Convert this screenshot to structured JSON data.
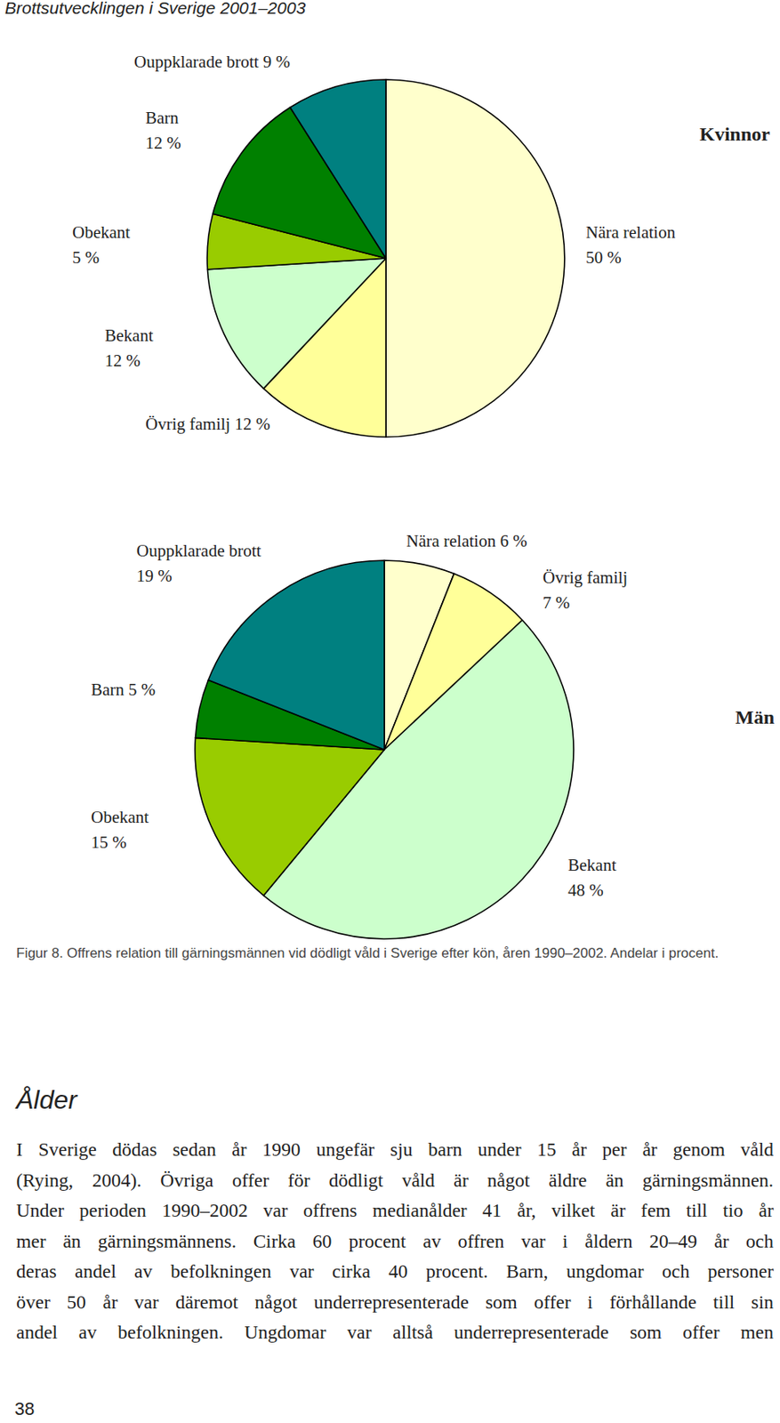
{
  "header": {
    "title": "Brottsutvecklingen i Sverige 2001–2003"
  },
  "chart_data": [
    {
      "type": "pie",
      "title": "Kvinnor",
      "categories": [
        "Nära relation",
        "Övrig familj",
        "Bekant",
        "Obekant",
        "Barn",
        "Ouppklarade brott"
      ],
      "values": [
        50,
        12,
        12,
        5,
        12,
        9
      ],
      "value_labels": [
        "50 %",
        "12 %",
        "12 %",
        "5 %",
        "12 %",
        "9 %"
      ],
      "colors": [
        "#ffffcc",
        "#ffff99",
        "#ccffcc",
        "#99cc00",
        "#008000",
        "#008080"
      ],
      "data_labels": true
    },
    {
      "type": "pie",
      "title": "Män",
      "categories": [
        "Nära relation",
        "Övrig familj",
        "Bekant",
        "Obekant",
        "Barn",
        "Ouppklarade brott"
      ],
      "values": [
        6,
        7,
        48,
        15,
        5,
        19
      ],
      "value_labels": [
        "6 %",
        "7 %",
        "48 %",
        "15 %",
        "5 %",
        "19 %"
      ],
      "colors": [
        "#ffffcc",
        "#ffff99",
        "#ccffcc",
        "#99cc00",
        "#008000",
        "#008080"
      ],
      "data_labels": true
    }
  ],
  "caption": "Figur 8. Offrens relation till gärningsmännen vid dödligt våld i Sverige efter kön, åren 1990–2002. Andelar i procent.",
  "section": {
    "heading": "Ålder",
    "lines": [
      "I Sverige dödas sedan år 1990 ungefär sju barn under 15 år per år genom våld",
      "(Rying, 2004). Övriga offer för dödligt våld är något äldre än gärningsmännen.",
      "Under perioden 1990–2002 var offrens medianålder 41 år, vilket är fem till tio år",
      "mer än gärningsmännens. Cirka 60 procent av offren var i åldern 20–49 år och",
      "deras andel av befolkningen var cirka 40 procent. Barn, ungdomar och personer",
      "över 50 år var däremot något underrepresenterade som offer i förhållande till sin",
      "andel av befolkningen. Ungdomar var alltså underrepresenterade som offer men"
    ]
  },
  "page_number": "38"
}
